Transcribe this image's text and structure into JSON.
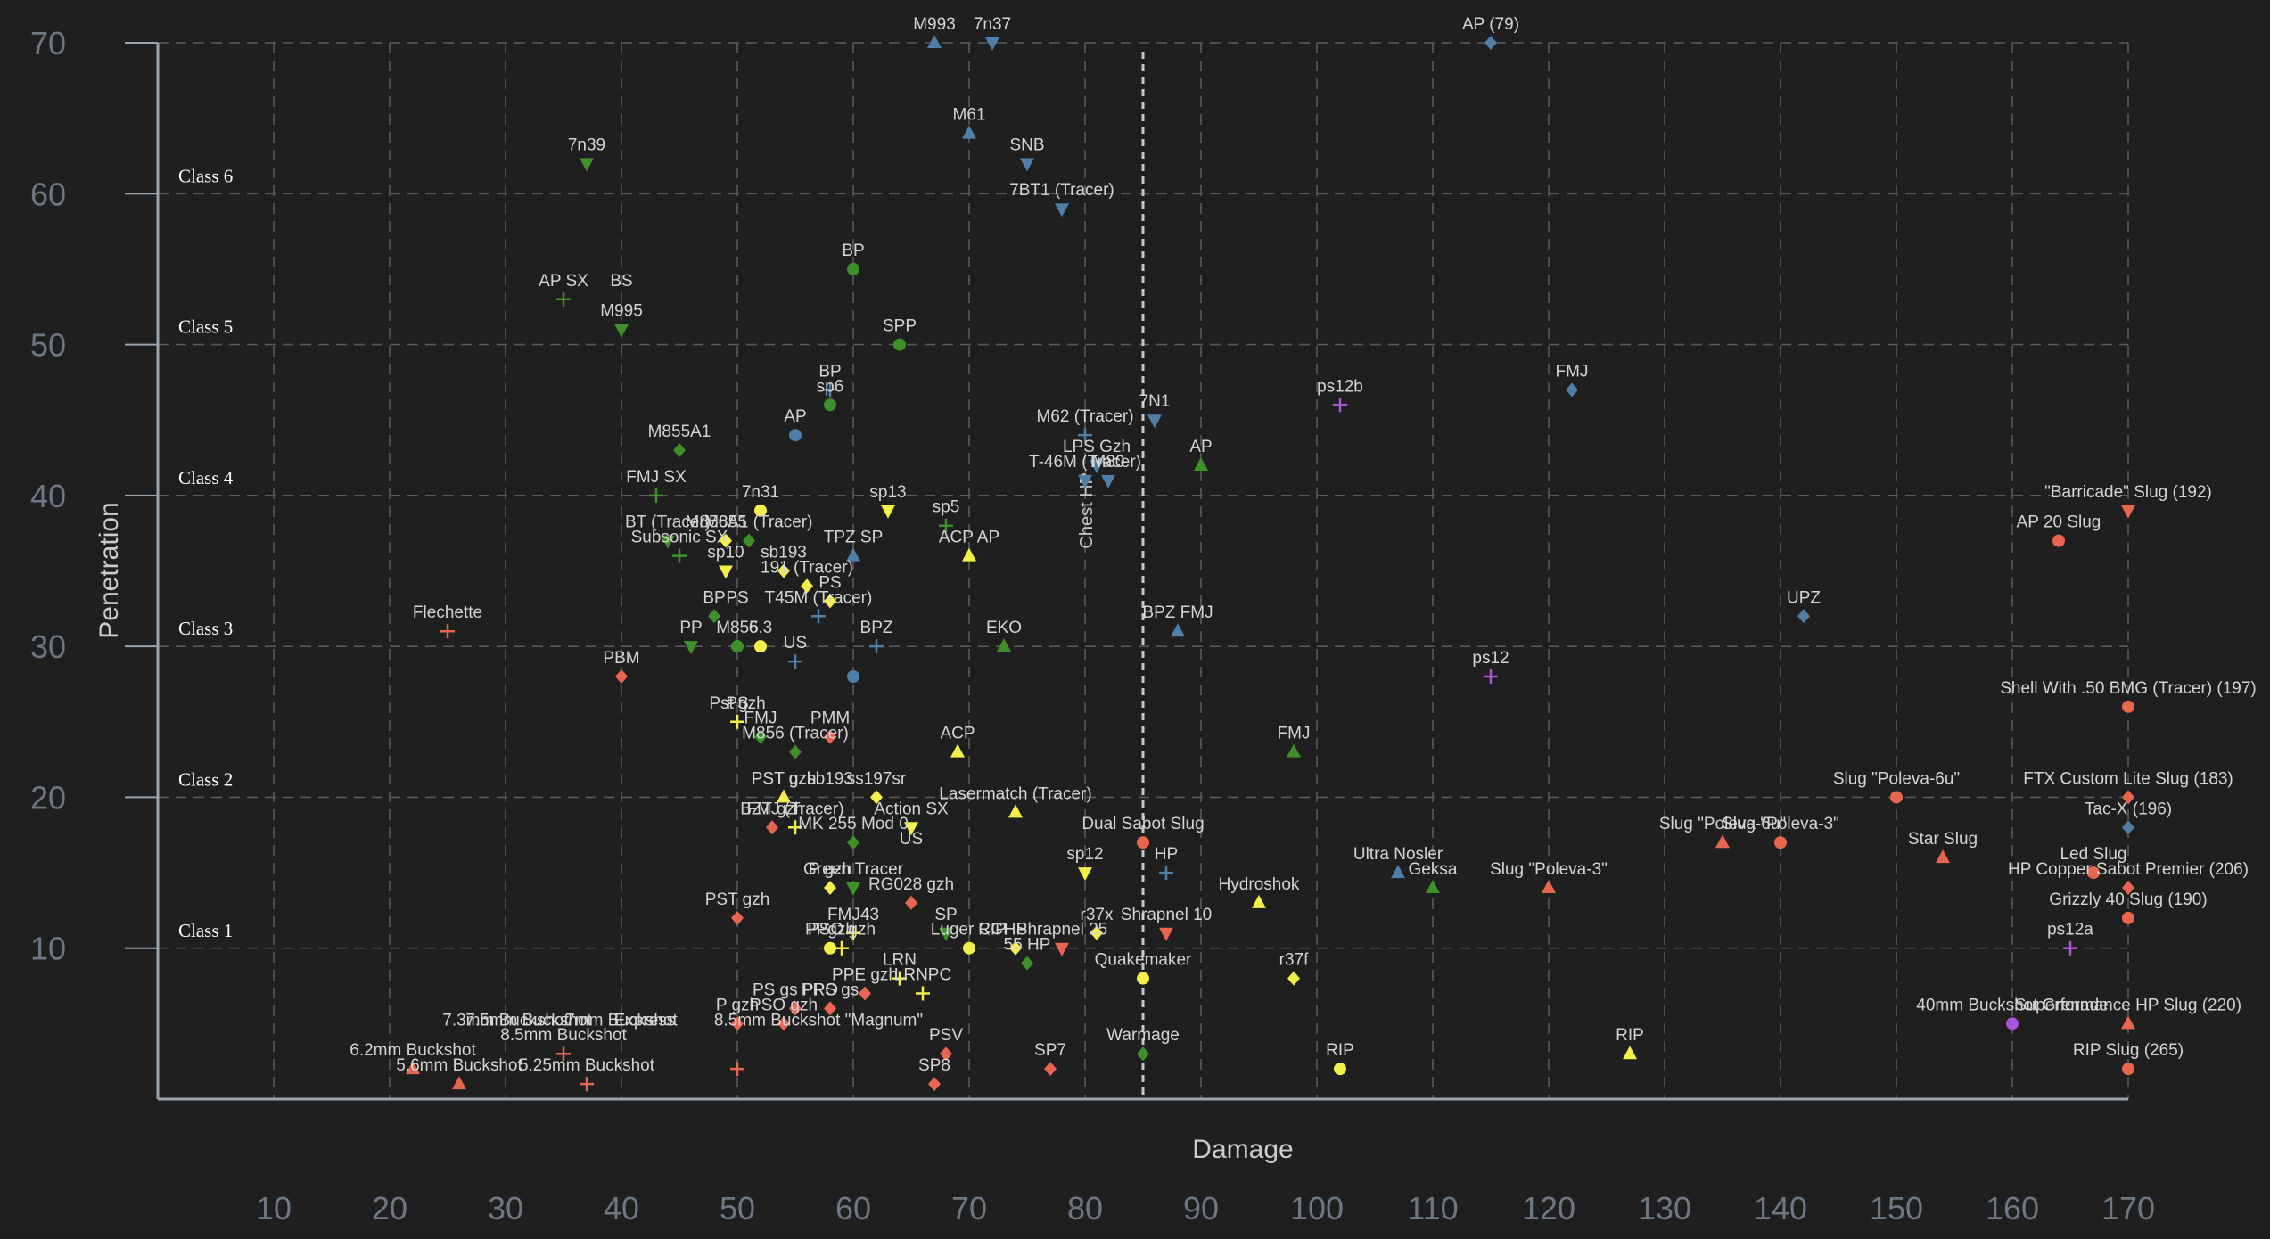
{
  "chart_data": {
    "type": "scatter",
    "xlabel": "Damage",
    "ylabel": "Penetration",
    "xlim": [
      0,
      170
    ],
    "ylim": [
      0,
      70
    ],
    "x_ticks": [
      "10",
      "20",
      "30",
      "40",
      "50",
      "60",
      "70",
      "80",
      "90",
      "100",
      "110",
      "120",
      "130",
      "140",
      "150",
      "160",
      "170"
    ],
    "y_ticks": [
      "10",
      "20",
      "30",
      "40",
      "50",
      "60",
      "70"
    ],
    "grid": true,
    "colors": {
      "red": "#e8664f",
      "green": "#3f8f2a",
      "blue": "#4f7ea6",
      "yellow": "#f2ef4a",
      "purple": "#a855d6"
    },
    "class_bands": [
      {
        "label": "Class 1",
        "y": 11
      },
      {
        "label": "Class 2",
        "y": 21
      },
      {
        "label": "Class 3",
        "y": 31
      },
      {
        "label": "Class 4",
        "y": 41
      },
      {
        "label": "Class 5",
        "y": 51
      },
      {
        "label": "Class 6",
        "y": 61
      }
    ],
    "reference_line": {
      "x": 85,
      "label": "Chest HP"
    },
    "points": [
      {
        "label": "7n39",
        "x": 37,
        "y": 62,
        "color": "green",
        "marker": "tri-down"
      },
      {
        "label": "AP SX",
        "x": 35,
        "y": 53,
        "color": "green",
        "marker": "plus"
      },
      {
        "label": "M995",
        "x": 40,
        "y": 51,
        "color": "green",
        "marker": "tri-down"
      },
      {
        "label": "BS",
        "x": 40,
        "y": 53,
        "color": "green",
        "marker": "none"
      },
      {
        "label": "BP",
        "x": 60,
        "y": 55,
        "color": "green",
        "marker": "circle"
      },
      {
        "label": "SPP",
        "x": 64,
        "y": 50,
        "color": "green",
        "marker": "circle"
      },
      {
        "label": "BP",
        "x": 58,
        "y": 47,
        "color": "blue",
        "marker": "plus"
      },
      {
        "label": "sp6",
        "x": 58,
        "y": 46,
        "color": "green",
        "marker": "circle"
      },
      {
        "label": "AP",
        "x": 55,
        "y": 44,
        "color": "blue",
        "marker": "circle"
      },
      {
        "label": "M855A1",
        "x": 45,
        "y": 43,
        "color": "green",
        "marker": "diamond"
      },
      {
        "label": "FMJ SX",
        "x": 43,
        "y": 40,
        "color": "green",
        "marker": "plus"
      },
      {
        "label": "7n31",
        "x": 52,
        "y": 39,
        "color": "yellow",
        "marker": "circle"
      },
      {
        "label": "BT (Tracer)",
        "x": 44,
        "y": 37,
        "color": "green",
        "marker": "tri-down"
      },
      {
        "label": "M855",
        "x": 49,
        "y": 37,
        "color": "yellow",
        "marker": "diamond"
      },
      {
        "label": "M856A1 (Tracer)",
        "x": 51,
        "y": 37,
        "color": "green",
        "marker": "diamond"
      },
      {
        "label": "Subsonic SX",
        "x": 45,
        "y": 36,
        "color": "green",
        "marker": "plus"
      },
      {
        "label": "sp10",
        "x": 49,
        "y": 35,
        "color": "yellow",
        "marker": "tri-down"
      },
      {
        "label": "sb193",
        "x": 54,
        "y": 35,
        "color": "yellow",
        "marker": "diamond"
      },
      {
        "label": "sp13",
        "x": 63,
        "y": 39,
        "color": "yellow",
        "marker": "tri-down"
      },
      {
        "label": "sp5",
        "x": 68,
        "y": 38,
        "color": "green",
        "marker": "plus"
      },
      {
        "label": "TPZ SP",
        "x": 60,
        "y": 36,
        "color": "blue",
        "marker": "triangle"
      },
      {
        "label": "ACP AP",
        "x": 70,
        "y": 36,
        "color": "yellow",
        "marker": "triangle"
      },
      {
        "label": "191 (Tracer)",
        "x": 56,
        "y": 34,
        "color": "yellow",
        "marker": "diamond"
      },
      {
        "label": "PS",
        "x": 58,
        "y": 33,
        "color": "yellow",
        "marker": "diamond"
      },
      {
        "label": "BP",
        "x": 48,
        "y": 32,
        "color": "green",
        "marker": "diamond"
      },
      {
        "label": "T45M (Tracer)",
        "x": 57,
        "y": 32,
        "color": "blue",
        "marker": "plus"
      },
      {
        "label": "PP",
        "x": 46,
        "y": 30,
        "color": "green",
        "marker": "tri-down"
      },
      {
        "label": "M855",
        "x": 50,
        "y": 30,
        "color": "green",
        "marker": "circle"
      },
      {
        "label": "PS",
        "x": 50,
        "y": 32,
        "color": "green",
        "marker": "none"
      },
      {
        "label": "6.3",
        "x": 52,
        "y": 30,
        "color": "yellow",
        "marker": "circle"
      },
      {
        "label": "US",
        "x": 55,
        "y": 29,
        "color": "blue",
        "marker": "plus"
      },
      {
        "label": "BPZ",
        "x": 62,
        "y": 30,
        "color": "blue",
        "marker": "plus"
      },
      {
        "label": "EKO",
        "x": 73,
        "y": 30,
        "color": "green",
        "marker": "triangle"
      },
      {
        "label": "BPZ FMJ",
        "x": 88,
        "y": 31,
        "color": "blue",
        "marker": "triangle"
      },
      {
        "label": "Flechette",
        "x": 25,
        "y": 31,
        "color": "red",
        "marker": "plus"
      },
      {
        "label": "PBM",
        "x": 40,
        "y": 28,
        "color": "red",
        "marker": "diamond"
      },
      {
        "label": "",
        "x": 60,
        "y": 28,
        "color": "blue",
        "marker": "circle"
      },
      {
        "label": "Pst gzh",
        "x": 50,
        "y": 25,
        "color": "yellow",
        "marker": "plus"
      },
      {
        "label": "PS",
        "x": 50,
        "y": 25,
        "color": "yellow",
        "marker": "none"
      },
      {
        "label": "FMJ",
        "x": 52,
        "y": 24,
        "color": "green",
        "marker": "diamond"
      },
      {
        "label": "PMM",
        "x": 58,
        "y": 24,
        "color": "red",
        "marker": "diamond"
      },
      {
        "label": "M856 (Tracer)",
        "x": 55,
        "y": 23,
        "color": "green",
        "marker": "diamond"
      },
      {
        "label": "ACP",
        "x": 69,
        "y": 23,
        "color": "yellow",
        "marker": "triangle"
      },
      {
        "label": "FMJ",
        "x": 98,
        "y": 23,
        "color": "green",
        "marker": "triangle"
      },
      {
        "label": "PST gzh",
        "x": 54,
        "y": 20,
        "color": "yellow",
        "marker": "triangle"
      },
      {
        "label": "T gzh",
        "x": 55,
        "y": 20,
        "color": "yellow",
        "marker": "none"
      },
      {
        "label": "ss197sr",
        "x": 62,
        "y": 20,
        "color": "yellow",
        "marker": "diamond"
      },
      {
        "label": "sb193",
        "x": 58,
        "y": 20,
        "color": "yellow",
        "marker": "none"
      },
      {
        "label": "Lasermatch (Tracer)",
        "x": 74,
        "y": 19,
        "color": "yellow",
        "marker": "triangle"
      },
      {
        "label": "BZT gzh",
        "x": 53,
        "y": 18,
        "color": "red",
        "marker": "diamond"
      },
      {
        "label": "FMJ (Tracer)",
        "x": 55,
        "y": 18,
        "color": "yellow",
        "marker": "plus"
      },
      {
        "label": "Action SX",
        "x": 65,
        "y": 18,
        "color": "yellow",
        "marker": "tri-down"
      },
      {
        "label": "MK 255 Mod 0",
        "x": 60,
        "y": 17,
        "color": "green",
        "marker": "diamond"
      },
      {
        "label": "Dual Sabot Slug",
        "x": 85,
        "y": 17,
        "color": "red",
        "marker": "circle"
      },
      {
        "label": "US",
        "x": 65,
        "y": 16,
        "color": "blue",
        "marker": "none"
      },
      {
        "label": "Green Tracer",
        "x": 60,
        "y": 14,
        "color": "green",
        "marker": "tri-down"
      },
      {
        "label": "P gzh",
        "x": 58,
        "y": 14,
        "color": "yellow",
        "marker": "diamond"
      },
      {
        "label": "RG028 gzh",
        "x": 65,
        "y": 13,
        "color": "red",
        "marker": "diamond"
      },
      {
        "label": "sp12",
        "x": 80,
        "y": 15,
        "color": "yellow",
        "marker": "tri-down"
      },
      {
        "label": "HP",
        "x": 87,
        "y": 15,
        "color": "blue",
        "marker": "plus"
      },
      {
        "label": "Ultra Nosler",
        "x": 107,
        "y": 15,
        "color": "blue",
        "marker": "triangle"
      },
      {
        "label": "Geksa",
        "x": 110,
        "y": 14,
        "color": "green",
        "marker": "triangle"
      },
      {
        "label": "Slug \"Poleva-3\"",
        "x": 120,
        "y": 14,
        "color": "red",
        "marker": "triangle"
      },
      {
        "label": "Hydroshok",
        "x": 95,
        "y": 13,
        "color": "yellow",
        "marker": "triangle"
      },
      {
        "label": "PST gzh",
        "x": 50,
        "y": 12,
        "color": "red",
        "marker": "diamond"
      },
      {
        "label": "FMJ43",
        "x": 60,
        "y": 11,
        "color": "yellow",
        "marker": "plus"
      },
      {
        "label": "SP",
        "x": 68,
        "y": 11,
        "color": "green",
        "marker": "tri-down"
      },
      {
        "label": "HP",
        "x": 74,
        "y": 10,
        "color": "yellow",
        "marker": "diamond"
      },
      {
        "label": "r37x",
        "x": 81,
        "y": 11,
        "color": "yellow",
        "marker": "diamond"
      },
      {
        "label": "Shrapnel 10",
        "x": 87,
        "y": 11,
        "color": "red",
        "marker": "tri-down"
      },
      {
        "label": "PSO gzh",
        "x": 59,
        "y": 10,
        "color": "yellow",
        "marker": "plus"
      },
      {
        "label": "Luger CCI",
        "x": 70,
        "y": 10,
        "color": "yellow",
        "marker": "circle"
      },
      {
        "label": "RIP",
        "x": 72,
        "y": 10,
        "color": "yellow",
        "marker": "none"
      },
      {
        "label": "Shrapnel 25",
        "x": 78,
        "y": 10,
        "color": "red",
        "marker": "tri-down"
      },
      {
        "label": "55 HP",
        "x": 75,
        "y": 9,
        "color": "green",
        "marker": "diamond"
      },
      {
        "label": "PPgzh",
        "x": 58,
        "y": 10,
        "color": "yellow",
        "marker": "circle"
      },
      {
        "label": "LRN",
        "x": 64,
        "y": 8,
        "color": "yellow",
        "marker": "plus"
      },
      {
        "label": "LRNPC",
        "x": 66,
        "y": 7,
        "color": "yellow",
        "marker": "plus"
      },
      {
        "label": "PPE gzh",
        "x": 61,
        "y": 7,
        "color": "red",
        "marker": "diamond"
      },
      {
        "label": "Quakemaker",
        "x": 85,
        "y": 8,
        "color": "yellow",
        "marker": "circle"
      },
      {
        "label": "r37f",
        "x": 98,
        "y": 8,
        "color": "yellow",
        "marker": "diamond"
      },
      {
        "label": "PS gs PPO",
        "x": 55,
        "y": 6,
        "color": "red",
        "marker": "diamond"
      },
      {
        "label": "PRS gs",
        "x": 58,
        "y": 6,
        "color": "red",
        "marker": "diamond"
      },
      {
        "label": "P gzh",
        "x": 50,
        "y": 5,
        "color": "red",
        "marker": "diamond"
      },
      {
        "label": "PSO gzh",
        "x": 54,
        "y": 5,
        "color": "red",
        "marker": "diamond"
      },
      {
        "label": "8.5mm Buckshot \"Magnum\"",
        "x": 57,
        "y": 4,
        "color": "red",
        "marker": "none"
      },
      {
        "label": "PSV",
        "x": 68,
        "y": 3,
        "color": "red",
        "marker": "diamond"
      },
      {
        "label": "SP8",
        "x": 67,
        "y": 1,
        "color": "red",
        "marker": "diamond"
      },
      {
        "label": "SP7",
        "x": 77,
        "y": 2,
        "color": "red",
        "marker": "diamond"
      },
      {
        "label": "Warmage",
        "x": 85,
        "y": 3,
        "color": "green",
        "marker": "diamond"
      },
      {
        "label": "RIP",
        "x": 102,
        "y": 2,
        "color": "yellow",
        "marker": "circle"
      },
      {
        "label": "RIP",
        "x": 127,
        "y": 3,
        "color": "yellow",
        "marker": "triangle"
      },
      {
        "label": "7.3mm Buckshot",
        "x": 30,
        "y": 4,
        "color": "red",
        "marker": "none"
      },
      {
        "label": "7.5mm Buckshot",
        "x": 32,
        "y": 4,
        "color": "red",
        "marker": "none"
      },
      {
        "label": "8.5mm Buckshot",
        "x": 35,
        "y": 3,
        "color": "red",
        "marker": "plus"
      },
      {
        "label": "7mm Buckshot",
        "x": 40,
        "y": 4,
        "color": "red",
        "marker": "none"
      },
      {
        "label": "Express",
        "x": 42,
        "y": 4,
        "color": "red",
        "marker": "none"
      },
      {
        "label": "6.2mm Buckshot",
        "x": 22,
        "y": 2,
        "color": "red",
        "marker": "triangle"
      },
      {
        "label": "5.6mm Buckshot",
        "x": 26,
        "y": 1,
        "color": "red",
        "marker": "triangle"
      },
      {
        "label": "5.25mm Buckshot",
        "x": 37,
        "y": 1,
        "color": "red",
        "marker": "plus"
      },
      {
        "label": "",
        "x": 50,
        "y": 2,
        "color": "red",
        "marker": "plus"
      },
      {
        "label": "M993",
        "x": 67,
        "y": 70,
        "color": "blue",
        "marker": "triangle"
      },
      {
        "label": "7n37",
        "x": 72,
        "y": 70,
        "color": "blue",
        "marker": "tri-down"
      },
      {
        "label": "M61",
        "x": 70,
        "y": 64,
        "color": "blue",
        "marker": "triangle"
      },
      {
        "label": "SNB",
        "x": 75,
        "y": 62,
        "color": "blue",
        "marker": "tri-down"
      },
      {
        "label": "7BT1 (Tracer)",
        "x": 78,
        "y": 59,
        "color": "blue",
        "marker": "tri-down"
      },
      {
        "label": "AP (79)",
        "x": 115,
        "y": 70,
        "color": "blue",
        "marker": "diamond"
      },
      {
        "label": "FMJ",
        "x": 122,
        "y": 47,
        "color": "blue",
        "marker": "diamond"
      },
      {
        "label": "7N1",
        "x": 86,
        "y": 45,
        "color": "blue",
        "marker": "tri-down"
      },
      {
        "label": "M62 (Tracer)",
        "x": 80,
        "y": 44,
        "color": "blue",
        "marker": "plus"
      },
      {
        "label": "LPS Gzh",
        "x": 81,
        "y": 42,
        "color": "blue",
        "marker": "tri-down"
      },
      {
        "label": "T-46M (Tracer)",
        "x": 80,
        "y": 41,
        "color": "blue",
        "marker": "tri-down"
      },
      {
        "label": "M80",
        "x": 82,
        "y": 41,
        "color": "blue",
        "marker": "tri-down"
      },
      {
        "label": "AP",
        "x": 90,
        "y": 42,
        "color": "green",
        "marker": "triangle"
      },
      {
        "label": "ps12b",
        "x": 102,
        "y": 46,
        "color": "purple",
        "marker": "plus"
      },
      {
        "label": "UPZ",
        "x": 142,
        "y": 32,
        "color": "blue",
        "marker": "diamond"
      },
      {
        "label": "ps12",
        "x": 115,
        "y": 28,
        "color": "purple",
        "marker": "plus"
      },
      {
        "label": "\"Barricade\" Slug (192)",
        "x": 170,
        "y": 39,
        "color": "red",
        "marker": "tri-down"
      },
      {
        "label": "AP 20 Slug",
        "x": 164,
        "y": 37,
        "color": "red",
        "marker": "circle"
      },
      {
        "label": "Shell With .50 BMG (Tracer) (197)",
        "x": 170,
        "y": 26,
        "color": "red",
        "marker": "circle"
      },
      {
        "label": "Slug \"Poleva-6u\"",
        "x": 150,
        "y": 20,
        "color": "red",
        "marker": "circle"
      },
      {
        "label": "FTX Custom Lite Slug (183)",
        "x": 170,
        "y": 20,
        "color": "red",
        "marker": "diamond"
      },
      {
        "label": "Tac-X (196)",
        "x": 170,
        "y": 18,
        "color": "blue",
        "marker": "diamond"
      },
      {
        "label": "Slug \"Poleva-6u\"",
        "x": 135,
        "y": 17,
        "color": "red",
        "marker": "triangle"
      },
      {
        "label": "Slug \"Poleva-3\"",
        "x": 140,
        "y": 17,
        "color": "red",
        "marker": "circle"
      },
      {
        "label": "Star Slug",
        "x": 154,
        "y": 16,
        "color": "red",
        "marker": "triangle"
      },
      {
        "label": "Led Slug",
        "x": 167,
        "y": 15,
        "color": "red",
        "marker": "circle"
      },
      {
        "label": "HP Copper Sabot Premier (206)",
        "x": 170,
        "y": 14,
        "color": "red",
        "marker": "diamond"
      },
      {
        "label": "Grizzly 40 Slug (190)",
        "x": 170,
        "y": 12,
        "color": "red",
        "marker": "circle"
      },
      {
        "label": "ps12a",
        "x": 165,
        "y": 10,
        "color": "purple",
        "marker": "plus"
      },
      {
        "label": "40mm Buckshot Grenade",
        "x": 160,
        "y": 5,
        "color": "purple",
        "marker": "circle"
      },
      {
        "label": "Superformance HP Slug (220)",
        "x": 170,
        "y": 5,
        "color": "red",
        "marker": "triangle"
      },
      {
        "label": "RIP Slug (265)",
        "x": 170,
        "y": 2,
        "color": "red",
        "marker": "circle"
      }
    ]
  }
}
